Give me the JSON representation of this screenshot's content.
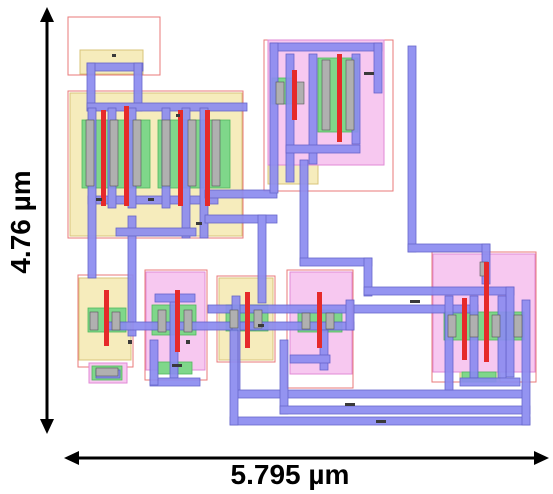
{
  "dimensions": {
    "height_label": "4.76 µm",
    "width_label": "5.795 µm"
  },
  "colors": {
    "background": "#ffffff",
    "nwell_fill": "#f7c8f0",
    "nwell_stroke": "#e08ad6",
    "pwell_fill": "#f6ecbc",
    "pwell_stroke": "#d8c47a",
    "boundary": "#e87a7a",
    "diffusion": "#7fd78a",
    "poly": "#e62a2a",
    "metal1": "#8c8cf0",
    "metal1_stroke": "#5a5ac8",
    "local": "#a0a0a0",
    "contact": "#3a3a3a",
    "arrow": "#000000"
  },
  "legend_note": ""
}
